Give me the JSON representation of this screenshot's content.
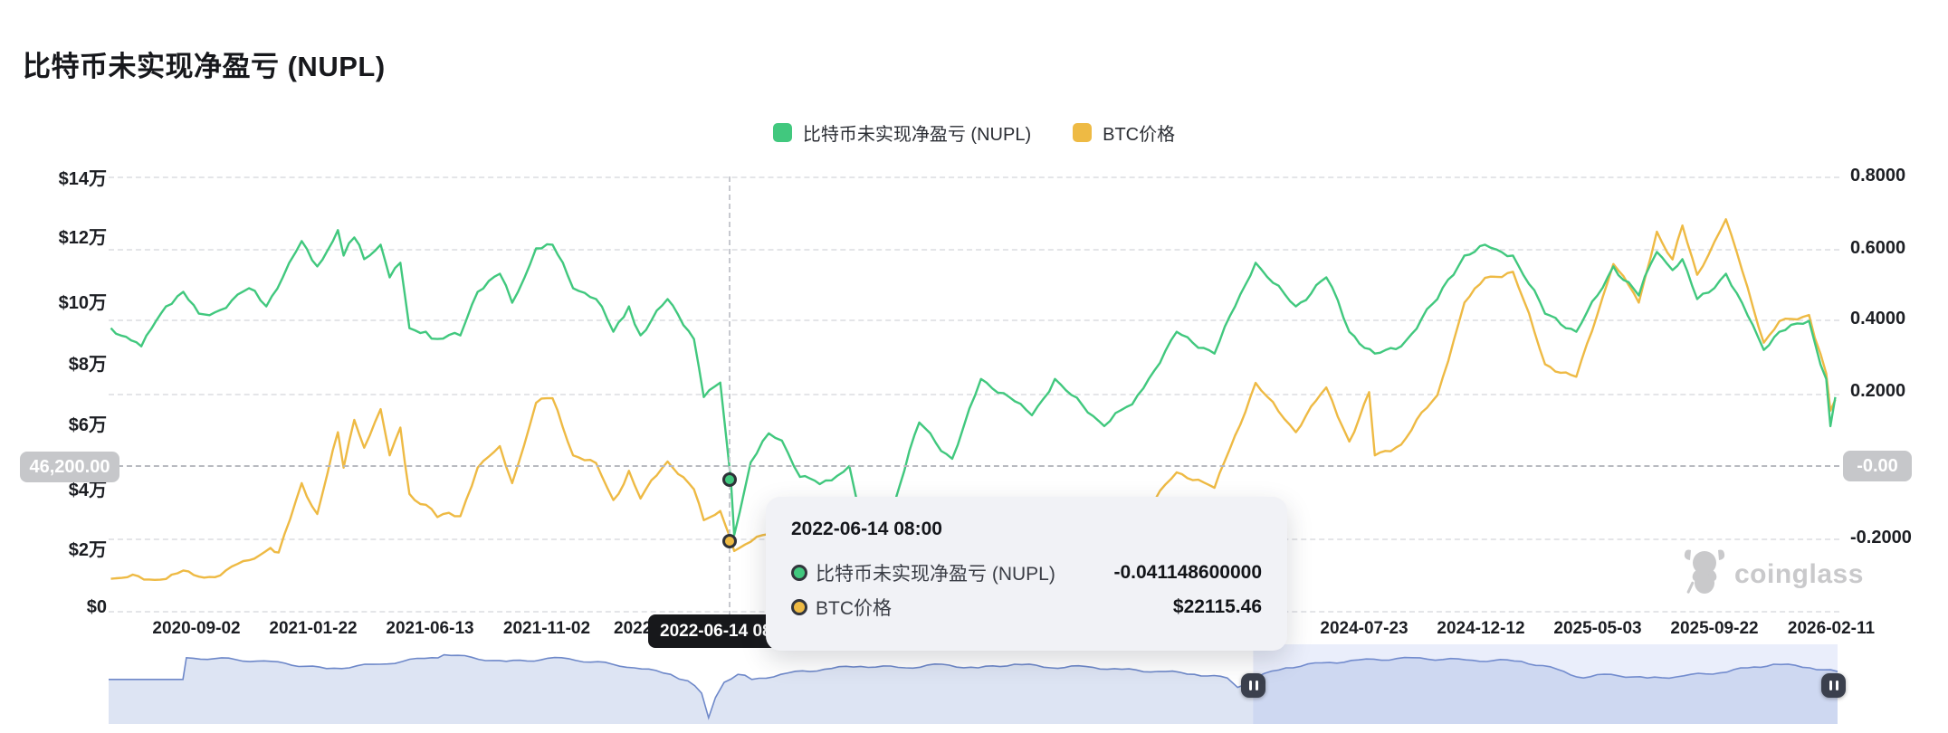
{
  "page": {
    "title": "比特币未实现净盈亏 (NUPL)"
  },
  "legend": [
    {
      "label": "比特币未实现净盈亏 (NUPL)",
      "color": "#41c87e"
    },
    {
      "label": "BTC价格",
      "color": "#eeba44"
    }
  ],
  "axes": {
    "left": {
      "labels": [
        "$14万",
        "$12万",
        "$10万",
        "$8万",
        "$6万",
        "$4万",
        "$2万",
        "$0"
      ]
    },
    "right": {
      "labels": [
        "0.8000",
        "0.6000",
        "0.4000",
        "0.2000",
        "-0.2000"
      ]
    },
    "x": {
      "labels": [
        "2020-09-02",
        "2021-01-22",
        "2021-06-13",
        "2021-11-02",
        "2022",
        "2024-07-23",
        "2024-12-12",
        "2025-05-03",
        "2025-09-22",
        "2026-02-11"
      ]
    }
  },
  "pointer": {
    "x_label": "2022-06-14 08:00",
    "left_label": "46,200.00",
    "right_label": "-0.00"
  },
  "tooltip": {
    "title": "2022-06-14 08:00",
    "rows": [
      {
        "label": "比特币未实现净盈亏 (NUPL)",
        "value": "-0.041148600000",
        "color": "#41c87e"
      },
      {
        "label": "BTC价格",
        "value": "$22115.46",
        "color": "#eeba44"
      }
    ]
  },
  "watermark": {
    "text": "coinglass"
  },
  "chart_data": {
    "type": "line",
    "title": "比特币未实现净盈亏 (NUPL)",
    "x_range": [
      "2020-05-21",
      "2026-02-16"
    ],
    "y_left": {
      "name": "BTC价格",
      "unit": "USD",
      "ticks": [
        "$0",
        "$2万",
        "$4万",
        "$6万",
        "$8万",
        "$10万",
        "$12万",
        "$14万"
      ],
      "range": [
        0,
        140000
      ]
    },
    "y_right": {
      "name": "NUPL",
      "ticks": [
        0.8,
        0.6,
        0.4,
        0.2,
        -0.2
      ],
      "range": [
        -0.25,
        0.8
      ]
    },
    "grid": "horizontal dashed",
    "legend_position": "top-center",
    "hover_point": {
      "date": "2022-06-14 08:00",
      "nupl": -0.0411486,
      "btc_usd": 22115.46
    },
    "series": [
      {
        "name": "比特币未实现净盈亏 (NUPL)",
        "axis": "right",
        "color": "#41c87e",
        "points": [
          [
            "2020-05-21",
            0.38
          ],
          [
            "2020-06-27",
            0.33
          ],
          [
            "2020-07-27",
            0.44
          ],
          [
            "2020-08-17",
            0.48
          ],
          [
            "2020-09-05",
            0.42
          ],
          [
            "2020-10-01",
            0.43
          ],
          [
            "2020-11-05",
            0.49
          ],
          [
            "2020-11-26",
            0.44
          ],
          [
            "2020-12-16",
            0.52
          ],
          [
            "2021-01-08",
            0.62
          ],
          [
            "2021-01-27",
            0.55
          ],
          [
            "2021-02-21",
            0.65
          ],
          [
            "2021-02-28",
            0.58
          ],
          [
            "2021-03-13",
            0.63
          ],
          [
            "2021-03-25",
            0.57
          ],
          [
            "2021-04-14",
            0.61
          ],
          [
            "2021-04-25",
            0.52
          ],
          [
            "2021-05-08",
            0.56
          ],
          [
            "2021-05-19",
            0.38
          ],
          [
            "2021-06-08",
            0.37
          ],
          [
            "2021-06-22",
            0.35
          ],
          [
            "2021-07-20",
            0.36
          ],
          [
            "2021-08-10",
            0.48
          ],
          [
            "2021-09-06",
            0.53
          ],
          [
            "2021-09-21",
            0.45
          ],
          [
            "2021-10-20",
            0.6
          ],
          [
            "2021-11-09",
            0.61
          ],
          [
            "2021-12-04",
            0.49
          ],
          [
            "2022-01-01",
            0.46
          ],
          [
            "2022-01-22",
            0.37
          ],
          [
            "2022-02-10",
            0.44
          ],
          [
            "2022-02-24",
            0.36
          ],
          [
            "2022-03-29",
            0.46
          ],
          [
            "2022-04-30",
            0.35
          ],
          [
            "2022-05-12",
            0.19
          ],
          [
            "2022-06-01",
            0.23
          ],
          [
            "2022-06-14",
            -0.0411486
          ],
          [
            "2022-06-18",
            -0.19
          ],
          [
            "2022-07-08",
            0.01
          ],
          [
            "2022-07-30",
            0.09
          ],
          [
            "2022-08-15",
            0.07
          ],
          [
            "2022-09-06",
            -0.03
          ],
          [
            "2022-09-30",
            -0.05
          ],
          [
            "2022-11-05",
            0.0
          ],
          [
            "2022-11-21",
            -0.17
          ],
          [
            "2022-12-30",
            -0.1
          ],
          [
            "2023-01-29",
            0.12
          ],
          [
            "2023-03-10",
            0.02
          ],
          [
            "2023-04-14",
            0.24
          ],
          [
            "2023-06-15",
            0.14
          ],
          [
            "2023-07-13",
            0.24
          ],
          [
            "2023-09-11",
            0.11
          ],
          [
            "2023-10-15",
            0.17
          ],
          [
            "2023-12-08",
            0.37
          ],
          [
            "2024-01-23",
            0.31
          ],
          [
            "2024-03-13",
            0.56
          ],
          [
            "2024-05-01",
            0.44
          ],
          [
            "2024-06-07",
            0.52
          ],
          [
            "2024-07-05",
            0.37
          ],
          [
            "2024-08-05",
            0.31
          ],
          [
            "2024-09-06",
            0.33
          ],
          [
            "2024-10-20",
            0.46
          ],
          [
            "2024-11-22",
            0.58
          ],
          [
            "2024-12-17",
            0.61
          ],
          [
            "2025-01-20",
            0.58
          ],
          [
            "2025-02-28",
            0.42
          ],
          [
            "2025-04-07",
            0.37
          ],
          [
            "2025-05-22",
            0.55
          ],
          [
            "2025-06-22",
            0.47
          ],
          [
            "2025-07-14",
            0.59
          ],
          [
            "2025-08-02",
            0.54
          ],
          [
            "2025-08-14",
            0.57
          ],
          [
            "2025-09-01",
            0.46
          ],
          [
            "2025-10-06",
            0.53
          ],
          [
            "2025-11-21",
            0.32
          ],
          [
            "2025-12-10",
            0.37
          ],
          [
            "2026-01-15",
            0.4
          ],
          [
            "2026-02-05",
            0.24
          ],
          [
            "2026-02-10",
            0.11
          ],
          [
            "2026-02-16",
            0.19
          ]
        ]
      },
      {
        "name": "BTC价格",
        "axis": "left",
        "color": "#eeba44",
        "points": [
          [
            "2020-05-21",
            9500
          ],
          [
            "2020-07-20",
            9200
          ],
          [
            "2020-08-17",
            12200
          ],
          [
            "2020-09-05",
            10200
          ],
          [
            "2020-10-01",
            10600
          ],
          [
            "2020-11-05",
            15500
          ],
          [
            "2020-12-01",
            19500
          ],
          [
            "2020-12-11",
            18000
          ],
          [
            "2021-01-08",
            40500
          ],
          [
            "2021-01-27",
            30500
          ],
          [
            "2021-02-21",
            57000
          ],
          [
            "2021-02-28",
            45500
          ],
          [
            "2021-03-13",
            61000
          ],
          [
            "2021-03-25",
            52000
          ],
          [
            "2021-04-14",
            64500
          ],
          [
            "2021-04-25",
            49500
          ],
          [
            "2021-05-08",
            58500
          ],
          [
            "2021-05-19",
            37000
          ],
          [
            "2021-06-08",
            33500
          ],
          [
            "2021-06-22",
            29500
          ],
          [
            "2021-07-20",
            29800
          ],
          [
            "2021-08-10",
            45500
          ],
          [
            "2021-09-06",
            52500
          ],
          [
            "2021-09-21",
            40500
          ],
          [
            "2021-10-20",
            66500
          ],
          [
            "2021-11-09",
            68000
          ],
          [
            "2021-12-04",
            49500
          ],
          [
            "2022-01-01",
            47000
          ],
          [
            "2022-01-22",
            35000
          ],
          [
            "2022-02-10",
            44500
          ],
          [
            "2022-02-24",
            35500
          ],
          [
            "2022-03-29",
            47500
          ],
          [
            "2022-04-30",
            38500
          ],
          [
            "2022-05-12",
            28500
          ],
          [
            "2022-06-01",
            31500
          ],
          [
            "2022-06-14",
            22115.46
          ],
          [
            "2022-06-18",
            18500
          ],
          [
            "2022-07-08",
            21500
          ],
          [
            "2022-07-30",
            24000
          ],
          [
            "2022-08-15",
            25000
          ],
          [
            "2022-09-06",
            19000
          ],
          [
            "2022-09-30",
            19500
          ],
          [
            "2022-11-05",
            21200
          ],
          [
            "2022-11-21",
            15800
          ],
          [
            "2022-12-30",
            16600
          ],
          [
            "2023-01-29",
            23800
          ],
          [
            "2023-03-10",
            20200
          ],
          [
            "2023-04-14",
            30500
          ],
          [
            "2023-06-15",
            25200
          ],
          [
            "2023-07-13",
            31500
          ],
          [
            "2023-09-11",
            25200
          ],
          [
            "2023-10-15",
            27000
          ],
          [
            "2023-12-08",
            44000
          ],
          [
            "2024-01-23",
            39000
          ],
          [
            "2024-03-13",
            73000
          ],
          [
            "2024-05-01",
            57000
          ],
          [
            "2024-06-07",
            71500
          ],
          [
            "2024-07-05",
            54000
          ],
          [
            "2024-07-29",
            70000
          ],
          [
            "2024-08-05",
            49500
          ],
          [
            "2024-09-06",
            53000
          ],
          [
            "2024-10-20",
            69000
          ],
          [
            "2024-11-22",
            99000
          ],
          [
            "2024-12-17",
            107000
          ],
          [
            "2025-01-20",
            109000
          ],
          [
            "2025-02-28",
            79000
          ],
          [
            "2025-04-07",
            75000
          ],
          [
            "2025-05-22",
            111500
          ],
          [
            "2025-06-22",
            99000
          ],
          [
            "2025-07-14",
            122000
          ],
          [
            "2025-08-02",
            113000
          ],
          [
            "2025-08-14",
            124000
          ],
          [
            "2025-09-01",
            108000
          ],
          [
            "2025-10-06",
            126000
          ],
          [
            "2025-11-21",
            86000
          ],
          [
            "2025-12-10",
            93000
          ],
          [
            "2026-01-15",
            95000
          ],
          [
            "2026-02-05",
            76000
          ],
          [
            "2026-02-10",
            64000
          ],
          [
            "2026-02-16",
            67500
          ]
        ]
      }
    ]
  },
  "navigator": {
    "selected_start": 0.662,
    "selected_end": 1.0,
    "line_color": "#6e88c9",
    "fill_color": "#dde4f3",
    "points": [
      [
        0.0,
        0.41
      ],
      [
        0.043,
        0.41
      ],
      [
        0.045,
        0.11
      ],
      [
        0.094,
        0.16
      ],
      [
        0.126,
        0.26
      ],
      [
        0.157,
        0.2
      ],
      [
        0.187,
        0.11
      ],
      [
        0.194,
        0.07
      ],
      [
        0.23,
        0.16
      ],
      [
        0.262,
        0.11
      ],
      [
        0.304,
        0.25
      ],
      [
        0.325,
        0.34
      ],
      [
        0.335,
        0.43
      ],
      [
        0.343,
        0.6
      ],
      [
        0.347,
        0.94
      ],
      [
        0.351,
        0.66
      ],
      [
        0.356,
        0.45
      ],
      [
        0.364,
        0.34
      ],
      [
        0.372,
        0.41
      ],
      [
        0.393,
        0.32
      ],
      [
        0.414,
        0.27
      ],
      [
        0.435,
        0.23
      ],
      [
        0.461,
        0.25
      ],
      [
        0.482,
        0.2
      ],
      [
        0.503,
        0.25
      ],
      [
        0.524,
        0.2
      ],
      [
        0.545,
        0.25
      ],
      [
        0.565,
        0.23
      ],
      [
        0.586,
        0.27
      ],
      [
        0.607,
        0.3
      ],
      [
        0.628,
        0.34
      ],
      [
        0.647,
        0.39
      ],
      [
        0.653,
        0.52
      ],
      [
        0.66,
        0.41
      ],
      [
        0.681,
        0.25
      ],
      [
        0.702,
        0.18
      ],
      [
        0.723,
        0.14
      ],
      [
        0.754,
        0.11
      ],
      [
        0.785,
        0.14
      ],
      [
        0.817,
        0.16
      ],
      [
        0.838,
        0.27
      ],
      [
        0.853,
        0.39
      ],
      [
        0.869,
        0.34
      ],
      [
        0.89,
        0.39
      ],
      [
        0.911,
        0.36
      ],
      [
        0.932,
        0.32
      ],
      [
        0.948,
        0.25
      ],
      [
        0.963,
        0.2
      ],
      [
        0.984,
        0.25
      ],
      [
        1.0,
        0.3
      ]
    ]
  }
}
